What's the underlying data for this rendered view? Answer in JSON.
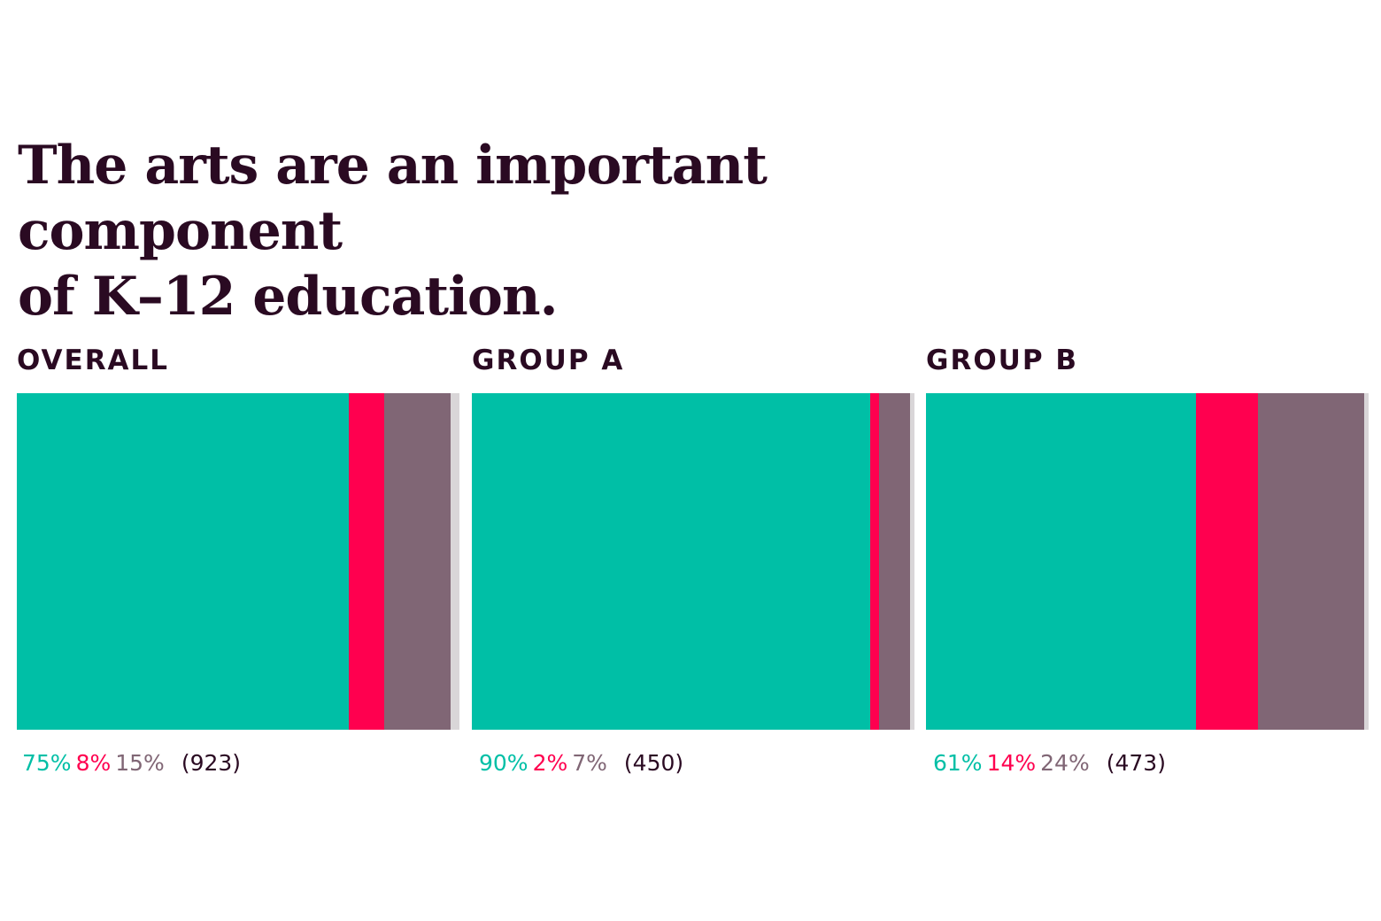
{
  "title_lines": [
    "The arts are an important component",
    "of K–12 education."
  ],
  "colors": {
    "agree": "#00bfa6",
    "disagree": "#ff004f",
    "neutral": "#806675",
    "remainder": "#d9d6d8",
    "text": "#2a0a22"
  },
  "chart_data": {
    "type": "bar",
    "stacked": true,
    "orientation": "horizontal",
    "title": "The arts are an important component of K–12 education.",
    "xlim": [
      0,
      100
    ],
    "grid": false,
    "legend": "none",
    "categories": [
      "OVERALL",
      "GROUP A",
      "GROUP B"
    ],
    "series": [
      {
        "values": [
          75,
          90,
          61
        ],
        "color": "#00bfa6"
      },
      {
        "values": [
          8,
          2,
          14
        ],
        "color": "#ff004f"
      },
      {
        "values": [
          15,
          7,
          24
        ],
        "color": "#806675"
      }
    ],
    "panels": [
      {
        "name": "OVERALL",
        "values": [
          75,
          8,
          15
        ],
        "labels": [
          "75%",
          "8%",
          "15%"
        ],
        "n": "(923)"
      },
      {
        "name": "GROUP A",
        "values": [
          90,
          2,
          7
        ],
        "labels": [
          "90%",
          "2%",
          "7%"
        ],
        "n": "(450)"
      },
      {
        "name": "GROUP B",
        "values": [
          61,
          14,
          24
        ],
        "labels": [
          "61%",
          "14%",
          "24%"
        ],
        "n": "(473)"
      }
    ]
  }
}
